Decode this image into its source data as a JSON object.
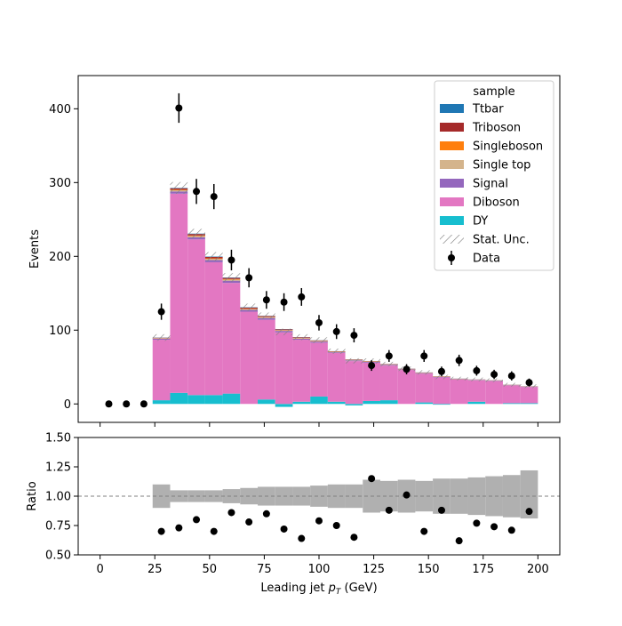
{
  "chart_data": [
    {
      "type": "bar",
      "stacked": true,
      "xlabel": "Leading jet  p_T (GeV)",
      "ylabel": "Events",
      "xlim": [
        -10,
        210
      ],
      "ylim": [
        -25,
        445
      ],
      "xticks": [
        "0",
        "25",
        "50",
        "75",
        "100",
        "125",
        "150",
        "175",
        "200"
      ],
      "yticks": [
        "0",
        "100",
        "200",
        "300",
        "400"
      ],
      "bin_edges": [
        0,
        8,
        16,
        24,
        32,
        40,
        48,
        56,
        64,
        72,
        80,
        88,
        96,
        104,
        112,
        120,
        128,
        136,
        144,
        152,
        160,
        168,
        176,
        184,
        192,
        200
      ],
      "legend": {
        "title": "sample",
        "placement": "top-right",
        "entries": [
          "Ttbar",
          "Triboson",
          "Singleboson",
          "Single top",
          "Signal",
          "Diboson",
          "DY",
          "Stat. Unc.",
          "Data"
        ]
      },
      "series": [
        {
          "name": "DY",
          "color": "#17becf",
          "values": [
            0,
            0,
            0,
            5,
            15,
            12,
            12,
            14,
            0,
            6,
            -4,
            3,
            10,
            3,
            -2,
            4,
            5,
            0,
            2,
            -1,
            0,
            3,
            0,
            1,
            1
          ]
        },
        {
          "name": "Diboson",
          "color": "#e377c2",
          "values": [
            0,
            0,
            0,
            82,
            270,
            211,
            180,
            150,
            125,
            108,
            97,
            84,
            73,
            66,
            58,
            52,
            47,
            46,
            39,
            36,
            33,
            29,
            31,
            24,
            22
          ]
        },
        {
          "name": "Signal",
          "color": "#9467bd",
          "values": [
            0,
            0,
            0,
            1.5,
            3,
            3,
            3,
            3,
            2.5,
            2.5,
            2,
            1.5,
            1.5,
            1,
            1,
            1,
            1,
            0.8,
            0.8,
            0.6,
            0.6,
            0.6,
            0.5,
            0.4,
            0.4
          ]
        },
        {
          "name": "Single top",
          "color": "#d4b48c",
          "values": [
            0,
            0,
            0,
            0.5,
            1.5,
            1.5,
            1.5,
            1.5,
            1,
            1,
            0.8,
            0.6,
            0.6,
            0.5,
            0.4,
            0.4,
            0.4,
            0.3,
            0.3,
            0.3,
            0.2,
            0.2,
            0.2,
            0.2,
            0.2
          ]
        },
        {
          "name": "Singleboson",
          "color": "#ff7f0e",
          "values": [
            0,
            0,
            0,
            0.3,
            0.8,
            0.8,
            0.8,
            0.8,
            0.6,
            0.6,
            0.4,
            0.4,
            0.4,
            0.3,
            0.3,
            0.3,
            0.2,
            0.2,
            0.2,
            0.2,
            0.2,
            0.1,
            0.1,
            0.1,
            0.1
          ]
        },
        {
          "name": "Triboson",
          "color": "#a52a2a",
          "values": [
            0,
            0,
            0,
            0.5,
            2,
            2,
            2,
            1.5,
            1.5,
            1,
            1,
            0.8,
            0.6,
            0.5,
            0.5,
            0.4,
            0.4,
            0.3,
            0.3,
            0.3,
            0.2,
            0.2,
            0.2,
            0.2,
            0.2
          ]
        },
        {
          "name": "Ttbar",
          "color": "#1f77b4",
          "values": [
            0,
            0,
            0,
            0.2,
            0.5,
            0.5,
            0.5,
            0.5,
            0.4,
            0.3,
            0.3,
            0.2,
            0.2,
            0.2,
            0.2,
            0.1,
            0.1,
            0.1,
            0.1,
            0.1,
            0.1,
            0.1,
            0.1,
            0.1,
            0.1
          ]
        }
      ],
      "stat_unc": [
        0,
        0,
        0,
        4.5,
        8,
        6.5,
        6,
        6,
        5,
        4.5,
        4.5,
        4,
        4,
        3.5,
        3.5,
        3.5,
        3,
        3,
        3,
        3,
        2.5,
        2.5,
        2.5,
        2.5,
        2.5
      ],
      "data_points": {
        "name": "Data",
        "x": [
          4,
          12,
          20,
          28,
          36,
          44,
          52,
          60,
          68,
          76,
          84,
          92,
          100,
          108,
          116,
          124,
          132,
          140,
          148,
          156,
          164,
          172,
          180,
          188,
          196
        ],
        "y": [
          0,
          0,
          0,
          125,
          401,
          288,
          281,
          195,
          171,
          141,
          138,
          145,
          110,
          98,
          93,
          52,
          65,
          47,
          65,
          44,
          59,
          45,
          40,
          38,
          29
        ],
        "yerr": [
          0,
          0,
          0,
          11,
          20,
          17,
          17,
          14,
          13,
          12,
          12,
          12,
          10.5,
          10,
          9.6,
          7.2,
          8,
          6.9,
          8,
          6.6,
          7.7,
          6.7,
          6.3,
          6.2,
          5.4
        ]
      }
    },
    {
      "type": "scatter",
      "xlabel": "Leading jet  p_T (GeV)",
      "ylabel": "Ratio",
      "xlim": [
        -10,
        210
      ],
      "ylim": [
        0.5,
        1.5
      ],
      "yticks": [
        "0.50",
        "0.75",
        "1.00",
        "1.25",
        "1.50"
      ],
      "reference_line": 1.0,
      "band_color": "#b0b0b0",
      "band_lo": [
        1,
        1,
        1,
        0.9,
        0.95,
        0.95,
        0.95,
        0.94,
        0.93,
        0.92,
        0.92,
        0.92,
        0.91,
        0.9,
        0.9,
        0.86,
        0.87,
        0.86,
        0.87,
        0.85,
        0.85,
        0.84,
        0.83,
        0.82,
        0.81
      ],
      "band_hi": [
        1,
        1,
        1,
        1.1,
        1.05,
        1.05,
        1.05,
        1.06,
        1.07,
        1.08,
        1.08,
        1.08,
        1.09,
        1.1,
        1.1,
        1.14,
        1.13,
        1.14,
        1.13,
        1.15,
        1.15,
        1.16,
        1.17,
        1.18,
        1.22
      ],
      "x": [
        28,
        36,
        44,
        52,
        60,
        68,
        76,
        84,
        92,
        100,
        108,
        116,
        124,
        132,
        140,
        148,
        156,
        164,
        172,
        180,
        188,
        196
      ],
      "y": [
        0.7,
        0.73,
        0.8,
        0.7,
        0.86,
        0.78,
        0.85,
        0.72,
        0.64,
        0.79,
        0.75,
        0.65,
        1.15,
        0.88,
        1.01,
        0.7,
        0.88,
        0.62,
        0.77,
        0.74,
        0.71,
        0.87
      ]
    }
  ]
}
